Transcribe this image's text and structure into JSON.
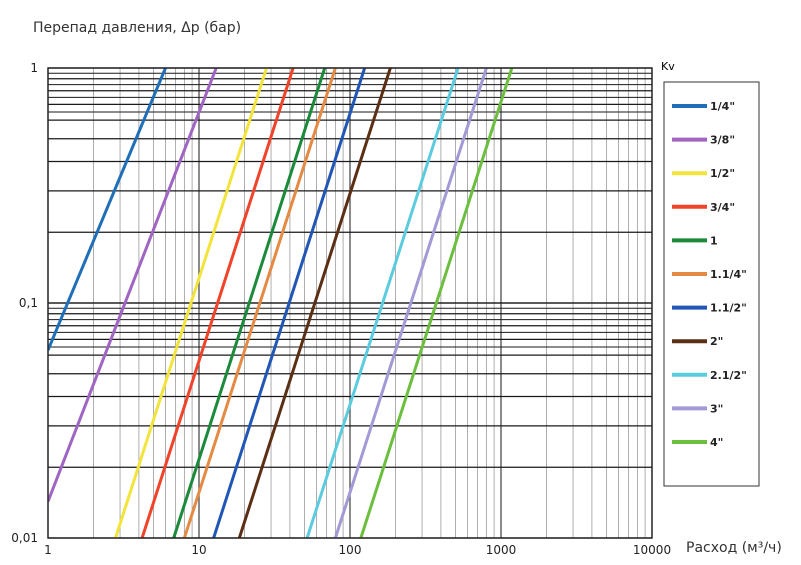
{
  "chart_data": {
    "type": "line",
    "ylabel": "Перепад давления, Δp (бар)",
    "xlabel": "Расход (м³/ч)",
    "legend_title": "Kv",
    "x_scale": "log",
    "y_scale": "log",
    "xlim": [
      1,
      10000
    ],
    "ylim": [
      0.01,
      1
    ],
    "x_ticks": [
      "1",
      "10",
      "100",
      "1000",
      "10000"
    ],
    "y_ticks": [
      "1",
      "0,1",
      "0,01"
    ],
    "grid": true,
    "legend_position": "right",
    "series": [
      {
        "name": "1/4\"",
        "color": "#1f6fb8",
        "points": [
          [
            1.0,
            0.063
          ],
          [
            6.0,
            1.0
          ]
        ]
      },
      {
        "name": "3/8\"",
        "color": "#a064c3",
        "points": [
          [
            1.0,
            0.0143
          ],
          [
            13.0,
            1.0
          ]
        ]
      },
      {
        "name": "1/2\"",
        "color": "#f2e43a",
        "points": [
          [
            2.8,
            0.01
          ],
          [
            28.0,
            1.0
          ]
        ]
      },
      {
        "name": "3/4\"",
        "color": "#f0432a",
        "points": [
          [
            4.2,
            0.01
          ],
          [
            42.0,
            1.0
          ]
        ]
      },
      {
        "name": "1",
        "color": "#1b8a3a",
        "points": [
          [
            6.8,
            0.01
          ],
          [
            68.0,
            1.0
          ]
        ]
      },
      {
        "name": "1.1/4\"",
        "color": "#e58a43",
        "points": [
          [
            8.0,
            0.01
          ],
          [
            80.0,
            1.0
          ]
        ]
      },
      {
        "name": "1.1/2\"",
        "color": "#2056b5",
        "points": [
          [
            12.5,
            0.01
          ],
          [
            125.0,
            1.0
          ]
        ]
      },
      {
        "name": "2\"",
        "color": "#5b2f14",
        "points": [
          [
            18.5,
            0.01
          ],
          [
            185.0,
            1.0
          ]
        ]
      },
      {
        "name": "2.1/2\"",
        "color": "#5bcbe0",
        "points": [
          [
            52.0,
            0.01
          ],
          [
            520.0,
            1.0
          ]
        ]
      },
      {
        "name": "3\"",
        "color": "#a19ad6",
        "points": [
          [
            80.0,
            0.01
          ],
          [
            800.0,
            1.0
          ]
        ]
      },
      {
        "name": "4\"",
        "color": "#6cbf3e",
        "points": [
          [
            118.0,
            0.01
          ],
          [
            1180.0,
            1.0
          ]
        ]
      }
    ]
  }
}
